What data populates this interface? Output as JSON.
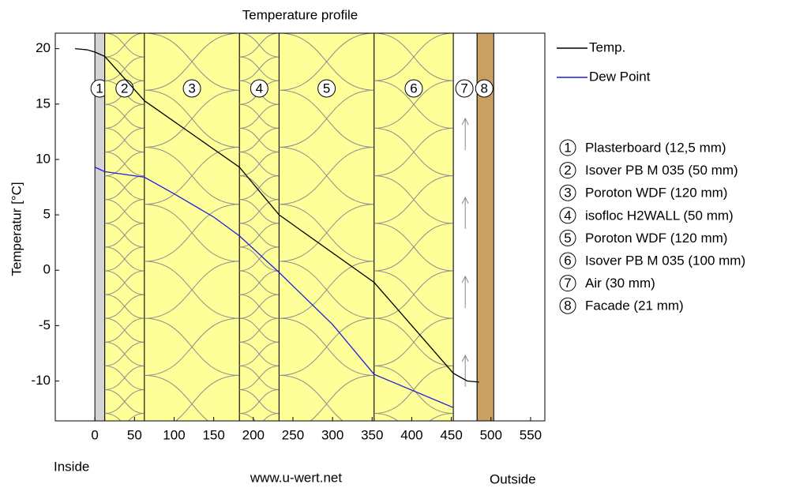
{
  "chart_data": {
    "type": "line",
    "title": "Temperature profile",
    "y_label": "Temperatur [°C]",
    "left_note": "Inside",
    "right_note": "Outside",
    "footer": "www.u-wert.net",
    "xlim": [
      -50,
      568
    ],
    "xticks": [
      0,
      50,
      100,
      150,
      200,
      250,
      300,
      350,
      400,
      450,
      500,
      550
    ],
    "ylim": [
      -13.6,
      21.4
    ],
    "yticks": [
      20,
      15,
      10,
      5,
      0,
      -5,
      -10
    ],
    "layers": [
      {
        "number": "1",
        "label": "Plasterboard  (12,5 mm)",
        "start": 0,
        "end": 12.5,
        "color": "#d4d4d4",
        "hatched": false
      },
      {
        "number": "2",
        "label": "Isover PB M 035 (50 mm)",
        "start": 12.5,
        "end": 62.5,
        "color": "#ffff99",
        "hatched": true
      },
      {
        "number": "3",
        "label": "Poroton WDF (120 mm)",
        "start": 62.5,
        "end": 182.5,
        "color": "#ffff99",
        "hatched": true
      },
      {
        "number": "4",
        "label": "isofloc H2WALL (50 mm)",
        "start": 182.5,
        "end": 232.5,
        "color": "#ffff99",
        "hatched": true
      },
      {
        "number": "5",
        "label": "Poroton WDF (120 mm)",
        "start": 232.5,
        "end": 352.5,
        "color": "#ffff99",
        "hatched": true
      },
      {
        "number": "6",
        "label": "Isover PB M 035 (100 mm)",
        "start": 352.5,
        "end": 452.5,
        "color": "#ffff99",
        "hatched": true
      },
      {
        "number": "7",
        "label": "Air (30 mm)",
        "start": 452.5,
        "end": 482.5,
        "color": "#ffffff",
        "hatched": false
      },
      {
        "number": "8",
        "label": "Facade  (21 mm)",
        "start": 482.5,
        "end": 503.5,
        "color": "#c9a063",
        "hatched": false
      }
    ],
    "series": [
      {
        "name": "Temp.",
        "color": "#000000",
        "x": [
          -25,
          -10,
          0,
          12.5,
          62.5,
          182.5,
          232.5,
          352.5,
          452.5,
          470,
          485
        ],
        "values": [
          20,
          19.9,
          19.7,
          19.3,
          15.3,
          9.3,
          5,
          -1.1,
          -9.3,
          -10,
          -10.1
        ]
      },
      {
        "name": "Dew Point",
        "color": "#1f1fdd",
        "x": [
          0,
          12.5,
          62.5,
          100,
          150,
          182.5,
          232.5,
          300,
          352.5,
          452.5
        ],
        "values": [
          9.3,
          8.9,
          8.4,
          6.9,
          4.8,
          3.1,
          -0.2,
          -4.9,
          -9.4,
          -12.4
        ]
      }
    ]
  }
}
